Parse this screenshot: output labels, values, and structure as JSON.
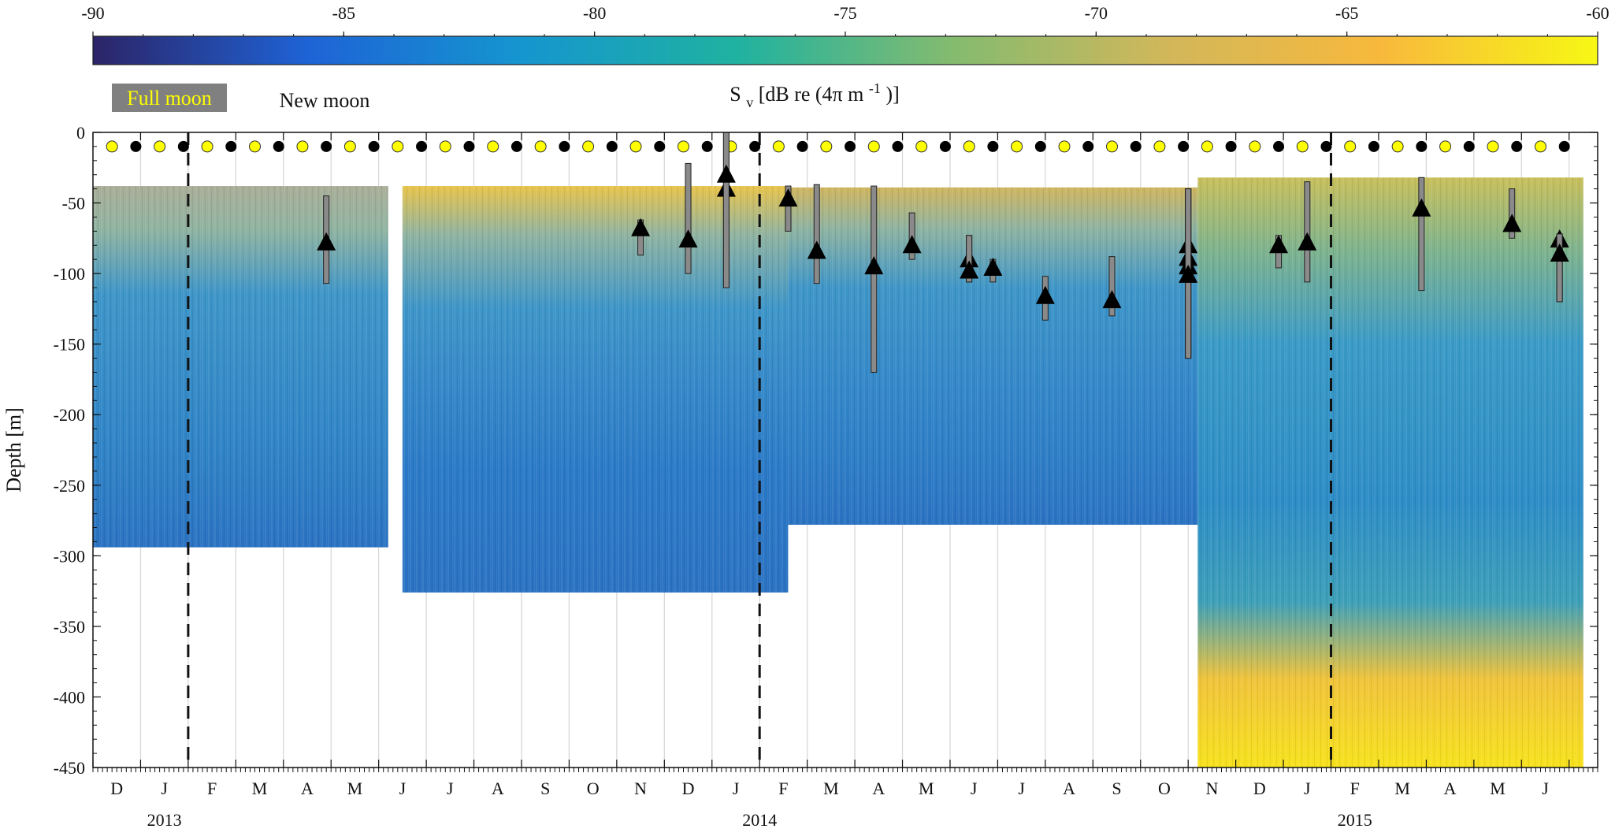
{
  "chart_data": {
    "type": "heatmap",
    "title": "",
    "colorbar": {
      "label_main": "S",
      "label_sub": "v",
      "label_rest": " [dB re (4π m",
      "label_sup": "-1",
      "label_end": ")]",
      "range": [
        -90,
        -60
      ],
      "ticks": [
        -90,
        -85,
        -80,
        -75,
        -70,
        -65,
        -60
      ],
      "colormap": [
        "#2c2467",
        "#1e63d6",
        "#1596cf",
        "#20b2a0",
        "#84bb6f",
        "#d2b75a",
        "#f8b93c",
        "#f7f714"
      ]
    },
    "ylabel": "Depth [m]",
    "ylim": [
      -450,
      0
    ],
    "yticks": [
      0,
      -50,
      -100,
      -150,
      -200,
      -250,
      -300,
      -350,
      -400,
      -450
    ],
    "xlim_months_from_2012_11": [
      0,
      31.6
    ],
    "month_letters": [
      "D",
      "J",
      "F",
      "M",
      "A",
      "M",
      "J",
      "J",
      "A",
      "S",
      "O",
      "N",
      "D",
      "J",
      "F",
      "M",
      "A",
      "M",
      "J",
      "J",
      "A",
      "S",
      "O",
      "N",
      "D",
      "J",
      "F",
      "M",
      "A",
      "M",
      "J"
    ],
    "year_labels": [
      {
        "text": "2013",
        "month": 1.5
      },
      {
        "text": "2014",
        "month": 14.0
      },
      {
        "text": "2015",
        "month": 26.5
      }
    ],
    "year_boundaries": [
      2.0,
      14.0,
      26.0
    ],
    "deployments": [
      {
        "start": 0.0,
        "end": 6.2,
        "top": -38,
        "bottom": -294,
        "surface": "#a9ad97",
        "deep_color": "#2f84c6"
      },
      {
        "start": 6.5,
        "end": 14.6,
        "top": -38,
        "bottom": -326,
        "surface": "#e8c34a",
        "deep_color": "#2a79c7"
      },
      {
        "start": 14.6,
        "end": 23.2,
        "top": -39,
        "bottom": -278,
        "surface": "#cfb55e",
        "deep_color": "#2f82c8"
      },
      {
        "start": 23.2,
        "end": 31.3,
        "top": -32,
        "bottom": -450,
        "surface": "#c8bf5a",
        "deep_color": "#2d8cc6",
        "bottom_layer_color": "#f7e21c",
        "bottom_layer_top": -360
      }
    ],
    "moon_phase_months": [
      {
        "full": 0.4,
        "new": 0.9
      },
      {
        "full": 1.4,
        "new": 1.9
      },
      {
        "full": 2.4,
        "new": 2.9
      },
      {
        "full": 3.4,
        "new": 3.9
      },
      {
        "full": 4.4,
        "new": 4.9
      },
      {
        "full": 5.4,
        "new": 5.9
      },
      {
        "full": 6.4,
        "new": 6.9
      },
      {
        "full": 7.4,
        "new": 7.9
      },
      {
        "full": 8.4,
        "new": 8.9
      },
      {
        "full": 9.4,
        "new": 9.9
      },
      {
        "full": 10.4,
        "new": 10.9
      },
      {
        "full": 11.4,
        "new": 11.9
      },
      {
        "full": 12.4,
        "new": 12.9
      },
      {
        "full": 13.4,
        "new": 13.9
      },
      {
        "full": 14.4,
        "new": 14.9
      },
      {
        "full": 15.4,
        "new": 15.9
      },
      {
        "full": 16.4,
        "new": 16.9
      },
      {
        "full": 17.4,
        "new": 17.9
      },
      {
        "full": 18.4,
        "new": 18.9
      },
      {
        "full": 19.4,
        "new": 19.9
      },
      {
        "full": 20.4,
        "new": 20.9
      },
      {
        "full": 21.4,
        "new": 21.9
      },
      {
        "full": 22.4,
        "new": 22.9
      },
      {
        "full": 23.4,
        "new": 23.9
      },
      {
        "full": 24.4,
        "new": 24.9
      },
      {
        "full": 25.4,
        "new": 25.9
      },
      {
        "full": 26.4,
        "new": 26.9
      },
      {
        "full": 27.4,
        "new": 27.9
      },
      {
        "full": 28.4,
        "new": 28.9
      },
      {
        "full": 29.4,
        "new": 29.9
      },
      {
        "full": 30.4,
        "new": 30.9
      }
    ],
    "legend": {
      "full_moon": "Full moon",
      "new_moon": "New moon",
      "full_moon_color": "#ffff00",
      "new_moon_color": "#000000"
    },
    "events": [
      {
        "month": 4.9,
        "depth": -78,
        "top": -45,
        "bottom": -107
      },
      {
        "month": 11.5,
        "depth": -68,
        "top": -62,
        "bottom": -87
      },
      {
        "month": 12.5,
        "depth": -76,
        "top": -22,
        "bottom": -100
      },
      {
        "month": 13.3,
        "depth": -40,
        "top": 0,
        "bottom": -110
      },
      {
        "month": 13.3,
        "depth": -30,
        "top": 0,
        "bottom": -110
      },
      {
        "month": 14.6,
        "depth": -47,
        "top": -38,
        "bottom": -70
      },
      {
        "month": 15.2,
        "depth": -84,
        "top": -37,
        "bottom": -107
      },
      {
        "month": 16.4,
        "depth": -95,
        "top": -38,
        "bottom": -170
      },
      {
        "month": 17.2,
        "depth": -80,
        "top": -57,
        "bottom": -90
      },
      {
        "month": 18.4,
        "depth": -90,
        "top": -73,
        "bottom": -106
      },
      {
        "month": 18.4,
        "depth": -98,
        "top": -73,
        "bottom": -106
      },
      {
        "month": 18.9,
        "depth": -96,
        "top": -90,
        "bottom": -106
      },
      {
        "month": 20.0,
        "depth": -116,
        "top": -102,
        "bottom": -133
      },
      {
        "month": 21.4,
        "depth": -119,
        "top": -88,
        "bottom": -130
      },
      {
        "month": 23.0,
        "depth": -80,
        "top": -40,
        "bottom": -160
      },
      {
        "month": 23.0,
        "depth": -89,
        "top": -40,
        "bottom": -160
      },
      {
        "month": 23.0,
        "depth": -95,
        "top": -40,
        "bottom": -160
      },
      {
        "month": 23.0,
        "depth": -101,
        "top": -40,
        "bottom": -160
      },
      {
        "month": 24.9,
        "depth": -80,
        "top": -73,
        "bottom": -96
      },
      {
        "month": 25.5,
        "depth": -78,
        "top": -35,
        "bottom": -106
      },
      {
        "month": 27.9,
        "depth": -54,
        "top": -32,
        "bottom": -112
      },
      {
        "month": 29.8,
        "depth": -65,
        "top": -40,
        "bottom": -75
      },
      {
        "month": 30.8,
        "depth": -76,
        "top": -72,
        "bottom": -120
      },
      {
        "month": 30.8,
        "depth": -86,
        "top": -72,
        "bottom": -120
      }
    ]
  }
}
